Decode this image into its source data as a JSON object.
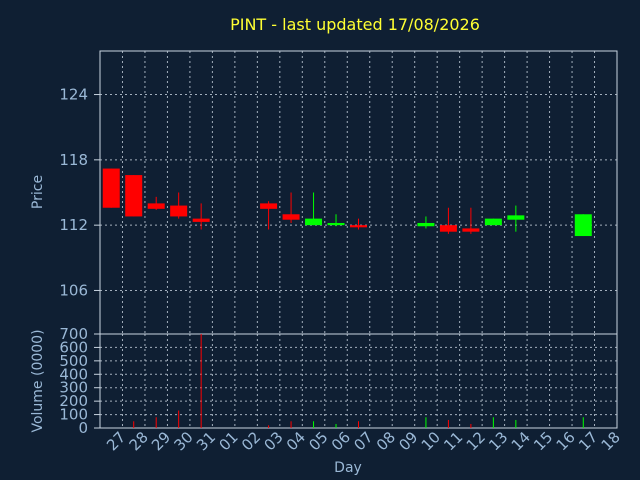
{
  "chart_data": {
    "type": "candlestick",
    "title": "PINT - last updated 17/08/2026",
    "xlabel": "Day",
    "x_ticks": [
      "27",
      "28",
      "29",
      "30",
      "31",
      "01",
      "02",
      "03",
      "04",
      "05",
      "06",
      "07",
      "08",
      "09",
      "10",
      "11",
      "12",
      "13",
      "14",
      "15",
      "16",
      "17",
      "18"
    ],
    "price_panel": {
      "ylabel": "Price",
      "ylim": [
        102,
        128
      ],
      "y_ticks": [
        106,
        112,
        118,
        124
      ]
    },
    "volume_panel": {
      "ylabel": "Volume (0000)",
      "ylim": [
        0,
        700
      ],
      "y_ticks": [
        0,
        100,
        200,
        300,
        400,
        500,
        600,
        700
      ]
    },
    "up_color": "#00ff00",
    "down_color": "#ff0000",
    "candles": [
      {
        "day": "27",
        "open": 117.2,
        "high": 117.2,
        "low": 113.6,
        "close": 113.6,
        "volume": 0
      },
      {
        "day": "28",
        "open": 116.6,
        "high": 116.6,
        "low": 112.8,
        "close": 112.8,
        "volume": 50
      },
      {
        "day": "29",
        "open": 114.0,
        "high": 114.6,
        "low": 113.4,
        "close": 113.5,
        "volume": 80
      },
      {
        "day": "30",
        "open": 113.8,
        "high": 115.0,
        "low": 112.6,
        "close": 112.8,
        "volume": 130
      },
      {
        "day": "31",
        "open": 112.6,
        "high": 114.0,
        "low": 111.6,
        "close": 112.3,
        "volume": 700
      },
      {
        "day": "03",
        "open": 114.0,
        "high": 114.2,
        "low": 111.6,
        "close": 113.5,
        "volume": 20
      },
      {
        "day": "04",
        "open": 113.0,
        "high": 115.0,
        "low": 112.2,
        "close": 112.5,
        "volume": 50
      },
      {
        "day": "05",
        "open": 112.0,
        "high": 115.0,
        "low": 112.0,
        "close": 112.6,
        "volume": 50
      },
      {
        "day": "06",
        "open": 112.0,
        "high": 113.0,
        "low": 111.9,
        "close": 112.2,
        "volume": 30
      },
      {
        "day": "07",
        "open": 112.0,
        "high": 112.6,
        "low": 111.6,
        "close": 111.8,
        "volume": 50
      },
      {
        "day": "10",
        "open": 111.9,
        "high": 112.8,
        "low": 111.7,
        "close": 112.2,
        "volume": 80
      },
      {
        "day": "11",
        "open": 112.0,
        "high": 113.6,
        "low": 111.2,
        "close": 111.4,
        "volume": 60
      },
      {
        "day": "12",
        "open": 111.7,
        "high": 113.6,
        "low": 111.2,
        "close": 111.4,
        "volume": 30
      },
      {
        "day": "13",
        "open": 112.0,
        "high": 112.6,
        "low": 112.0,
        "close": 112.6,
        "volume": 80
      },
      {
        "day": "14",
        "open": 112.5,
        "high": 113.8,
        "low": 111.4,
        "close": 112.9,
        "volume": 60
      },
      {
        "day": "17",
        "open": 111.0,
        "high": 113.0,
        "low": 111.0,
        "close": 113.0,
        "volume": 80
      }
    ]
  }
}
